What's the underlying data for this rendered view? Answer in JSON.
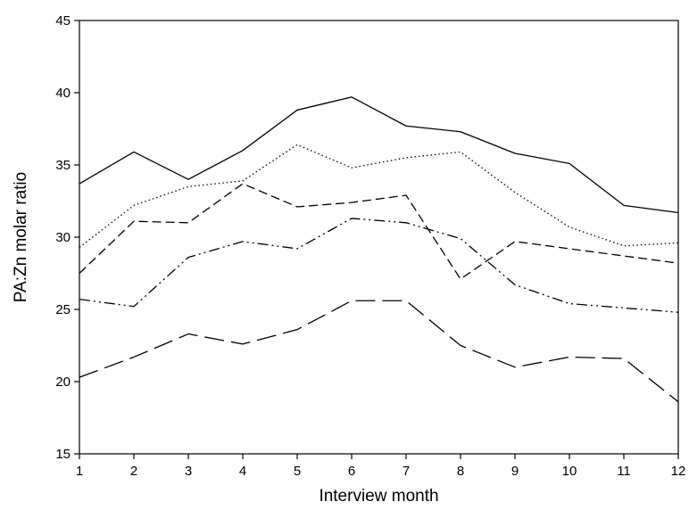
{
  "chart_data": {
    "type": "line",
    "title": "",
    "xlabel": "Interview month",
    "ylabel": "PA:Zn molar ratio",
    "xlim": [
      1,
      12
    ],
    "ylim": [
      15,
      45
    ],
    "x_ticks": [
      1,
      2,
      3,
      4,
      5,
      6,
      7,
      8,
      9,
      10,
      11,
      12
    ],
    "y_ticks": [
      15,
      20,
      25,
      30,
      35,
      40,
      45
    ],
    "grid": false,
    "legend": "none",
    "x": [
      1,
      2,
      3,
      4,
      5,
      6,
      7,
      8,
      9,
      10,
      11,
      12
    ],
    "series": [
      {
        "style": "solid",
        "values": [
          33.7,
          35.9,
          34.0,
          36.0,
          38.8,
          39.7,
          37.7,
          37.3,
          35.8,
          35.1,
          32.2,
          31.7
        ]
      },
      {
        "style": "dotted",
        "values": [
          29.3,
          32.2,
          33.5,
          33.9,
          36.4,
          34.8,
          35.5,
          35.9,
          33.1,
          30.7,
          29.4,
          29.6
        ]
      },
      {
        "style": "short-dash",
        "values": [
          27.5,
          31.1,
          31.0,
          33.7,
          32.1,
          32.4,
          32.9,
          27.1,
          29.7,
          29.2,
          28.7,
          28.2
        ]
      },
      {
        "style": "dash-dot-dot",
        "values": [
          25.7,
          25.2,
          28.6,
          29.7,
          29.2,
          31.3,
          31.0,
          29.9,
          26.7,
          25.4,
          25.1,
          24.8
        ]
      },
      {
        "style": "long-dash",
        "values": [
          20.3,
          21.7,
          23.3,
          22.6,
          23.6,
          25.6,
          25.6,
          22.5,
          21.0,
          21.7,
          21.6,
          18.6
        ]
      }
    ],
    "colors": {
      "line": "#000000",
      "axis": "#000000",
      "background": "#ffffff"
    }
  }
}
